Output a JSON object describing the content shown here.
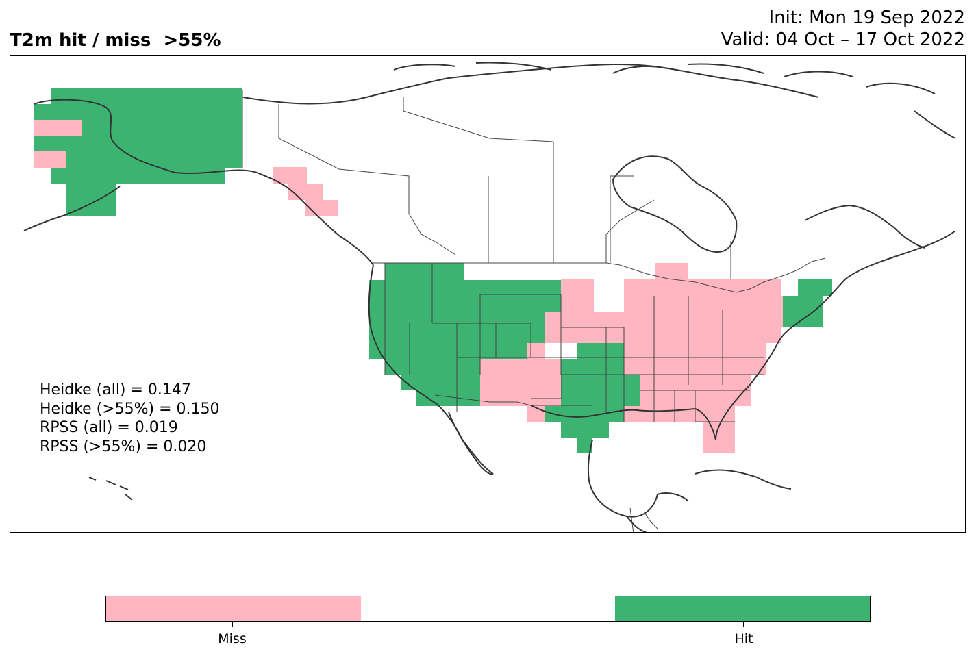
{
  "title": {
    "left": "T2m hit / miss  >55%",
    "init": "Init: Mon 19 Sep 2022",
    "valid": "Valid: 04 Oct – 17 Oct 2022"
  },
  "scores": {
    "heidke_all": "Heidke (all) = 0.147",
    "heidke_55": "Heidke (>55%) = 0.150",
    "rpss_all": "RPSS (all) = 0.019",
    "rpss_55": "RPSS (>55%) = 0.020"
  },
  "legend": {
    "miss_label": "Miss",
    "hit_label": "Hit",
    "colors": {
      "miss": "#ffb6c1",
      "neutral": "#ffffff",
      "hit": "#3cb371"
    }
  },
  "map": {
    "region": "North America",
    "categories": [
      "Miss",
      "Hit"
    ]
  }
}
